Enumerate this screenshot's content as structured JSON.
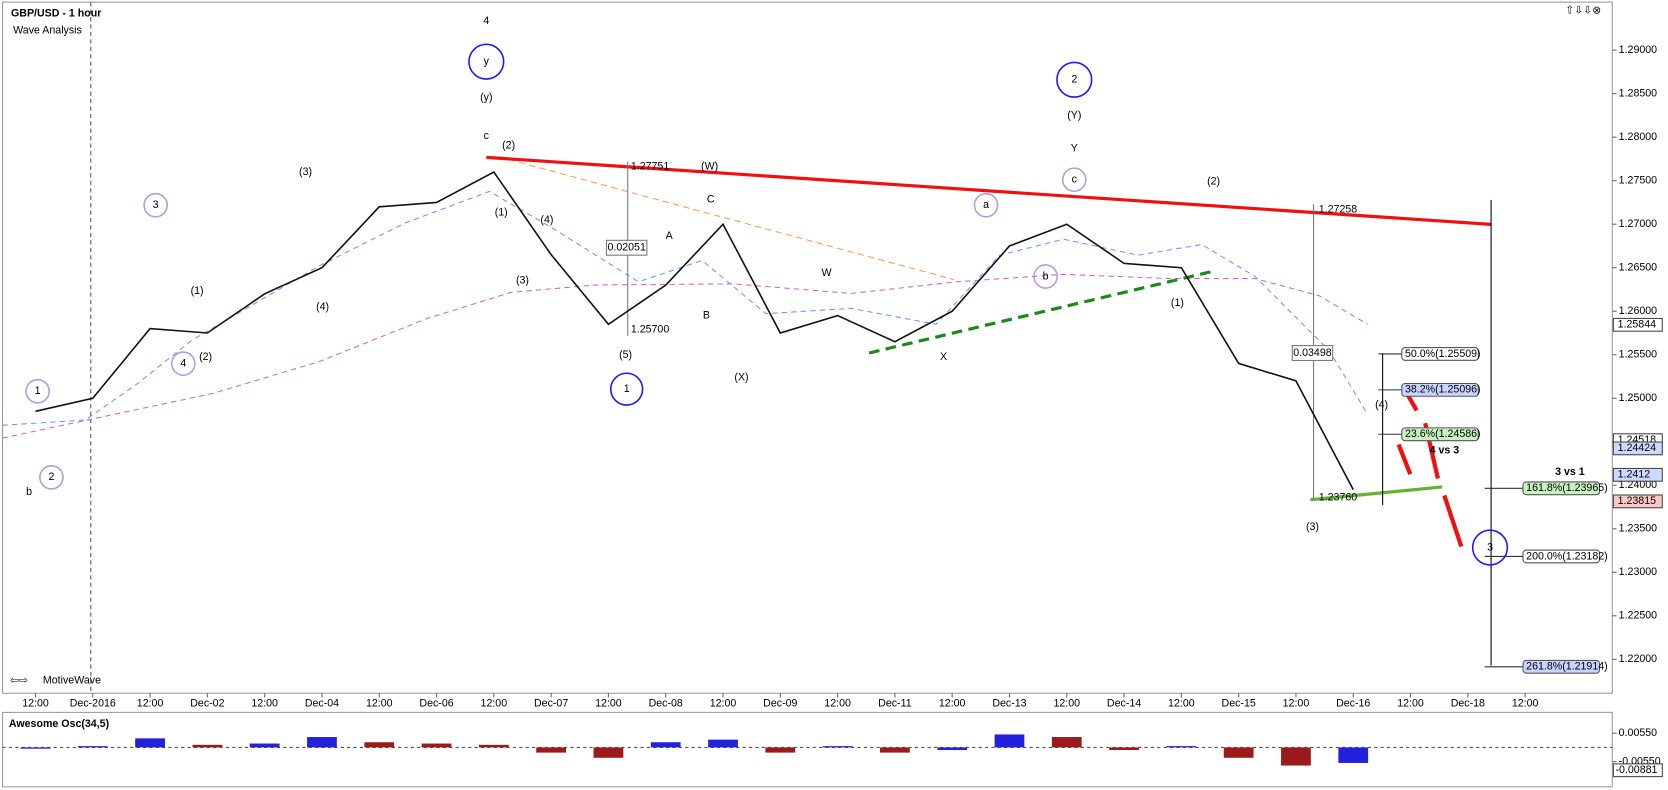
{
  "header": {
    "title": "GBP/USD - 1 hour",
    "subtitle": "Wave Analysis",
    "brand": "MotiveWave"
  },
  "chart_data": [
    {
      "type": "line",
      "name": "GBP/USD",
      "categories": [
        "12:00",
        "Dec-2016",
        "12:00",
        "Dec-02",
        "12:00",
        "Dec-04",
        "12:00",
        "Dec-06",
        "12:00",
        "Dec-07",
        "12:00",
        "Dec-08",
        "12:00",
        "Dec-09",
        "12:00",
        "Dec-11",
        "12:00",
        "Dec-13",
        "12:00",
        "Dec-14",
        "12:00",
        "Dec-15",
        "12:00",
        "Dec-16",
        "12:00",
        "Dec-18",
        "12:00"
      ],
      "values": [
        1.2485,
        1.25,
        1.258,
        1.2575,
        1.262,
        1.265,
        1.272,
        1.2725,
        1.276,
        1.2665,
        1.2585,
        1.263,
        1.27,
        1.2575,
        1.2595,
        1.2565,
        1.26,
        1.2675,
        1.27,
        1.2655,
        1.265,
        1.254,
        1.252,
        1.2395,
        null,
        null,
        null
      ],
      "color": "#111111",
      "ylim": [
        1.2161,
        1.2954
      ],
      "yticks": [
        {
          "value": 1.22,
          "label": "1.22000"
        },
        {
          "value": 1.225,
          "label": "1.22500"
        },
        {
          "value": 1.23,
          "label": "1.23000"
        },
        {
          "value": 1.235,
          "label": "1.23500"
        },
        {
          "value": 1.24,
          "label": "1.24000"
        },
        {
          "value": 1.245,
          "label": "1.24500"
        },
        {
          "value": 1.25,
          "label": "1.25000"
        },
        {
          "value": 1.255,
          "label": "1.25500"
        },
        {
          "value": 1.26,
          "label": "1.26000"
        },
        {
          "value": 1.265,
          "label": "1.26500"
        },
        {
          "value": 1.27,
          "label": "1.27000"
        },
        {
          "value": 1.275,
          "label": "1.27500"
        },
        {
          "value": 1.28,
          "label": "1.28000"
        },
        {
          "value": 1.285,
          "label": "1.28500"
        },
        {
          "value": 1.29,
          "label": "1.29000"
        }
      ],
      "price_markers": {
        "values": [
          1.25844,
          1.24518,
          1.24424,
          1.2412,
          1.23815
        ],
        "colors": [
          "#ffffff",
          "#ffffff",
          "#cfd8ff",
          "#cfd8ff",
          "#ffc8c8"
        ]
      },
      "fib_levels": {
        "values": [
          1.25509,
          1.25096,
          1.24586,
          1.23965,
          1.23182,
          1.21914
        ],
        "value_labels": [
          "50.0%(1.25509)",
          "38.2%(1.25096)",
          "23.6%(1.24586)",
          "161.8%(1.23965)",
          "200.0%(1.23182)",
          "261.8%(1.21914)"
        ],
        "colors": [
          "#ffffff",
          "#c9d3ff",
          "#c8f0c0",
          "#c8f0c0",
          "#ffffff",
          "#c9d3ff"
        ]
      },
      "annotations": [
        "4",
        "y",
        "(y)",
        "c",
        "(2)",
        "(W)",
        "C",
        "A",
        "B",
        "(1)",
        "(4)",
        "(3)",
        "(5)",
        "1",
        "(X)",
        "W",
        "X",
        "2",
        "(Y)",
        "Y",
        "c",
        "a",
        "b",
        "(2)",
        "(1)",
        "(4)",
        "(3)",
        "3",
        "(3)",
        "(1)",
        "(2)",
        "(4)",
        "3",
        "4",
        "1",
        "2",
        "b",
        "4 vs 3",
        "3 vs 1",
        "0.02051",
        "0.03498",
        "1.27751",
        "1.25700",
        "1.27258",
        "1.23760"
      ]
    },
    {
      "type": "bar",
      "title": "Awesome Osc(34,5)",
      "values": [
        -0.0005,
        0.0005,
        0.0035,
        0.001,
        0.0015,
        0.004,
        0.002,
        0.0015,
        0.001,
        -0.002,
        -0.004,
        0.002,
        0.003,
        -0.002,
        0.0005,
        -0.002,
        -0.001,
        0.005,
        0.004,
        -0.001,
        0.0005,
        -0.004,
        -0.007,
        -0.006,
        null,
        null,
        null
      ],
      "up_color": "#2222dd",
      "down_color": "#9b1b1b",
      "ylim": [
        -0.0152,
        0.0127
      ],
      "yticks": [
        {
          "value": 0.0055,
          "label": "0.00550"
        },
        {
          "value": -0.0055,
          "label": "-0.00550"
        }
      ],
      "last_value": -0.00881
    }
  ]
}
